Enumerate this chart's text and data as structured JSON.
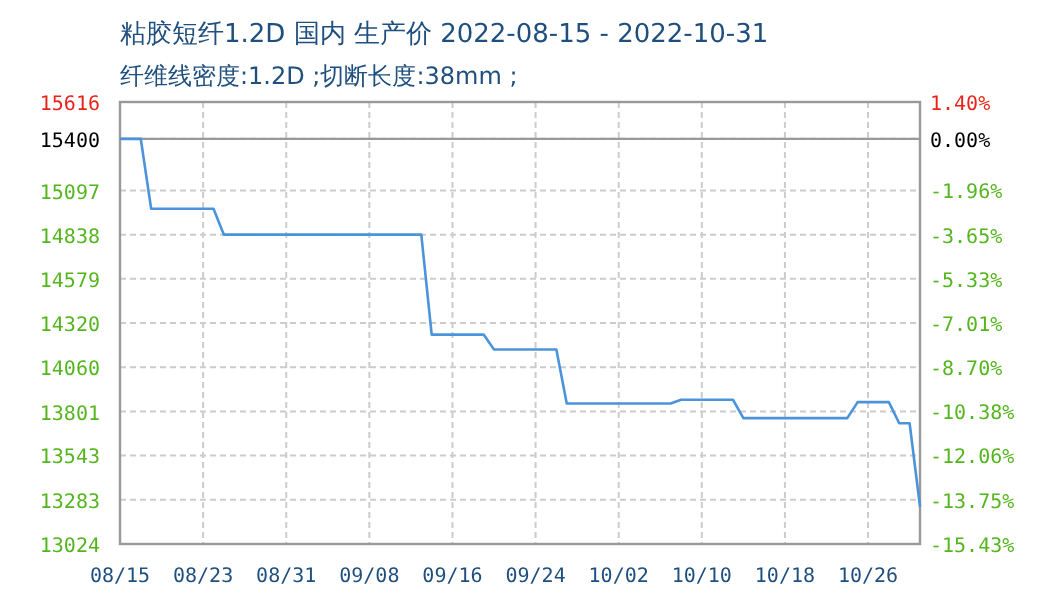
{
  "chart_data": {
    "type": "step",
    "title": "粘胶短纤1.2D 国内 生产价 2022-08-15 - 2022-10-31",
    "subtitle": "纤维线密度:1.2D ;切断长度:38mm ;",
    "x": [
      "2022-08-15",
      "2022-08-17",
      "2022-08-18",
      "2022-08-24",
      "2022-08-25",
      "2022-09-13",
      "2022-09-14",
      "2022-09-19",
      "2022-09-20",
      "2022-09-26",
      "2022-09-27",
      "2022-10-07",
      "2022-10-08",
      "2022-10-13",
      "2022-10-14",
      "2022-10-24",
      "2022-10-25",
      "2022-10-28",
      "2022-10-29",
      "2022-10-30",
      "2022-10-31"
    ],
    "values": [
      15400,
      15400,
      14990,
      14990,
      14838,
      14838,
      14252,
      14252,
      14165,
      14165,
      13848,
      13848,
      13870,
      13870,
      13762,
      13762,
      13856,
      13856,
      13732,
      13732,
      13243
    ],
    "color": "#4b94dc",
    "xlim": [
      "2022-08-15",
      "2022-10-31"
    ],
    "xticks": [
      {
        "value": "2022-08-15",
        "label": "08/15"
      },
      {
        "value": "2022-08-23",
        "label": "08/23"
      },
      {
        "value": "2022-08-31",
        "label": "08/31"
      },
      {
        "value": "2022-09-08",
        "label": "09/08"
      },
      {
        "value": "2022-09-16",
        "label": "09/16"
      },
      {
        "value": "2022-09-24",
        "label": "09/24"
      },
      {
        "value": "2022-10-02",
        "label": "10/02"
      },
      {
        "value": "2022-10-10",
        "label": "10/10"
      },
      {
        "value": "2022-10-18",
        "label": "10/18"
      },
      {
        "value": "2022-10-26",
        "label": "10/26"
      }
    ],
    "ylim": [
      13024,
      15616
    ],
    "yticks": [
      15616,
      15400,
      15097,
      14838,
      14579,
      14320,
      14060,
      13801,
      13543,
      13283,
      13024
    ],
    "y2lim": [
      -15.43,
      1.4
    ],
    "y2ticks": [
      {
        "value": 1.4,
        "label": "1.40%"
      },
      {
        "value": 0,
        "label": "0.00%"
      },
      {
        "value": -1.96,
        "label": "-1.96%"
      },
      {
        "value": -3.65,
        "label": "-3.65%"
      },
      {
        "value": -5.33,
        "label": "-5.33%"
      },
      {
        "value": -7.01,
        "label": "-7.01%"
      },
      {
        "value": -8.7,
        "label": "-8.70%"
      },
      {
        "value": -10.38,
        "label": "-10.38%"
      },
      {
        "value": -12.06,
        "label": "-12.06%"
      },
      {
        "value": -13.75,
        "label": "-13.75%"
      },
      {
        "value": -15.43,
        "label": "-15.43%"
      }
    ],
    "ref_lines": [
      {
        "axis": "y",
        "value": 15400,
        "color": "#999999"
      }
    ],
    "grid": true
  }
}
